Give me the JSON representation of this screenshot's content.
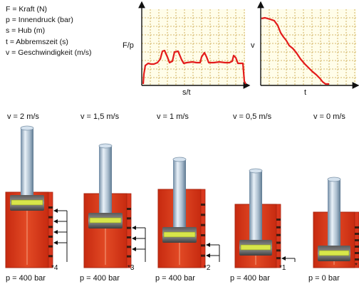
{
  "legend": [
    "F = Kraft (N)",
    "p = Innendruck (bar)",
    "s = Hub (m)",
    "t = Abbremszeit (s)",
    "v = Geschwindigkeit (m/s)"
  ],
  "charts": {
    "left": {
      "ylabel": "F/p",
      "xlabel": "s/t"
    },
    "right": {
      "ylabel": "v",
      "xlabel": "t"
    }
  },
  "colors": {
    "cylinder_red": "#d9381e",
    "cylinder_red_dark": "#a8240f",
    "piston_yellow": "#d8e64a",
    "curve_red": "#e31b1b",
    "grid": "#c8a040",
    "rod_metal": "#9fb5c8"
  },
  "stages": [
    {
      "speed": "v = 2 m/s",
      "pressure": "p = 400 bar",
      "note": "*4"
    },
    {
      "speed": "v = 1,5 m/s",
      "pressure": "p = 400 bar",
      "note": "*3"
    },
    {
      "speed": "v = 1 m/s",
      "pressure": "p = 400 bar",
      "note": "*2"
    },
    {
      "speed": "v = 0,5 m/s",
      "pressure": "p = 400 bar",
      "note": "*1"
    },
    {
      "speed": "v = 0 m/s",
      "pressure": "p = 0 bar",
      "note": "*"
    }
  ]
}
